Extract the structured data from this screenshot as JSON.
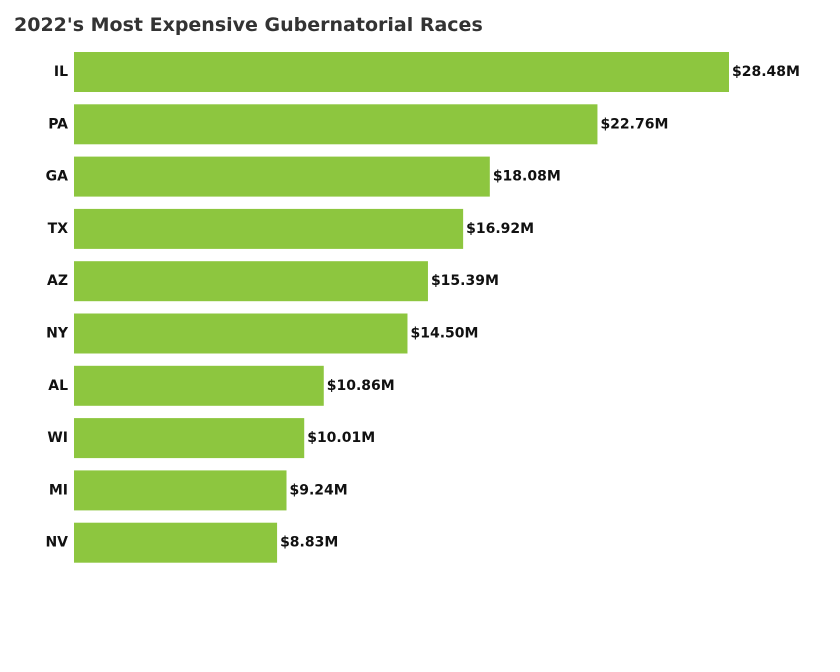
{
  "chart_data": {
    "type": "bar",
    "orientation": "horizontal",
    "title": "2022's Most Expensive Gubernatorial Races",
    "categories": [
      "IL",
      "PA",
      "GA",
      "TX",
      "AZ",
      "NY",
      "AL",
      "WI",
      "MI",
      "NV"
    ],
    "values": [
      28.48,
      22.76,
      18.08,
      16.92,
      15.39,
      14.5,
      10.86,
      10.01,
      9.24,
      8.83
    ],
    "value_labels": [
      "$28.48M",
      "$22.76M",
      "$18.08M",
      "$16.92M",
      "$15.39M",
      "$14.50M",
      "$10.86M",
      "$10.01M",
      "$9.24M",
      "$8.83M"
    ],
    "unit": "$M",
    "xlim": [
      0,
      28.48
    ],
    "grid": false,
    "legend": "none",
    "bar_color": "#8dc63f"
  }
}
